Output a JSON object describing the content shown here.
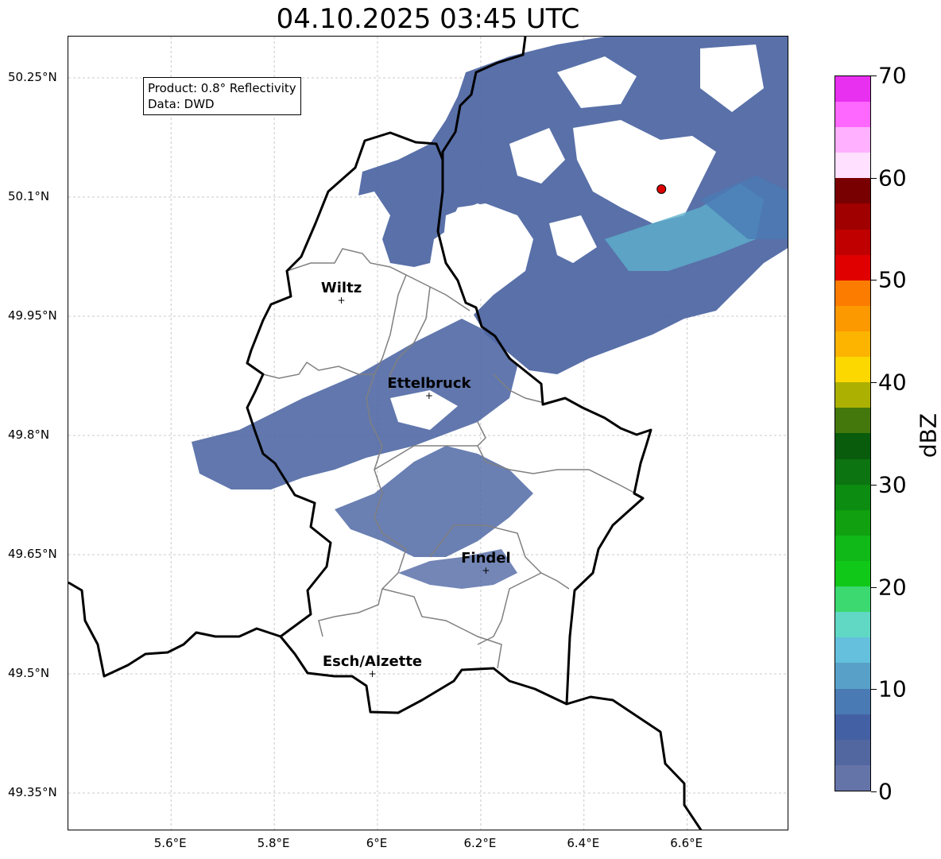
{
  "title": "04.10.2025 03:45 UTC",
  "info": {
    "product": "Product: 0.8° Reflectivity",
    "data": "Data: DWD"
  },
  "axes": {
    "y_ticks": [
      "50.25°N",
      "50.1°N",
      "49.95°N",
      "49.8°N",
      "49.65°N",
      "49.5°N",
      "49.35°N"
    ],
    "x_ticks": [
      "5.6°E",
      "5.8°E",
      "6°E",
      "6.2°E",
      "6.4°E",
      "6.6°E"
    ]
  },
  "cities": [
    {
      "name": "Wiltz",
      "lon": 5.93,
      "lat": 49.97
    },
    {
      "name": "Ettelbruck",
      "lon": 6.1,
      "lat": 49.85
    },
    {
      "name": "Findel",
      "lon": 6.21,
      "lat": 49.63
    },
    {
      "name": "Esch/Alzette",
      "lon": 5.99,
      "lat": 49.5
    }
  ],
  "radar_site": {
    "lon": 6.55,
    "lat": 50.11,
    "color": "#e00000"
  },
  "colorbar": {
    "label": "dBZ",
    "ticks": [
      "0",
      "10",
      "20",
      "30",
      "40",
      "50",
      "60",
      "70"
    ],
    "colors": [
      "#6574a8",
      "#5266a0",
      "#4460a4",
      "#4a7ab4",
      "#58a0c8",
      "#64c0dc",
      "#60d8c4",
      "#3cd870",
      "#10c818",
      "#10b818",
      "#10a010",
      "#0c8c10",
      "#0c7410",
      "#085c0c",
      "#44780c",
      "#acb000",
      "#fcd800",
      "#fcb400",
      "#fc9800",
      "#fc7c00",
      "#e00000",
      "#c00000",
      "#a00000",
      "#780000",
      "#ffe0ff",
      "#ffb0ff",
      "#ff68ff",
      "#e830f0"
    ]
  }
}
